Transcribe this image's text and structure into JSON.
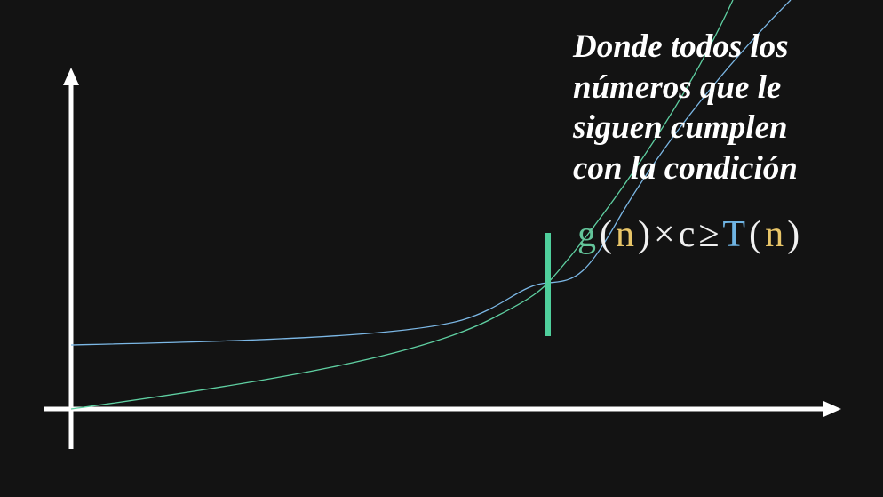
{
  "caption": {
    "lines": [
      "Donde todos los",
      "números que le",
      "siguen cumplen",
      "con la condición"
    ]
  },
  "formula": {
    "parts": [
      "g",
      "(",
      "n",
      ")",
      "×",
      "c",
      "≥",
      "T",
      "(",
      "n",
      ")"
    ]
  }
}
